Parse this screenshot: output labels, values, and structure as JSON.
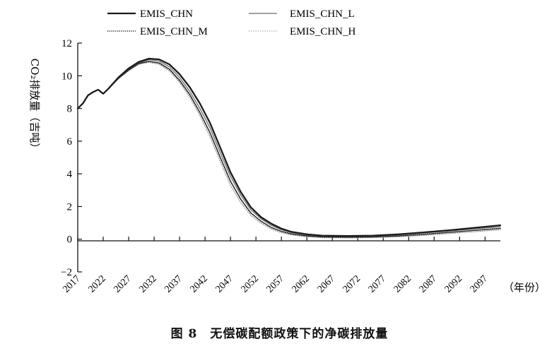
{
  "chart_data": {
    "type": "line",
    "title": "",
    "caption": "图 8　无偿碳配额政策下的净碳排放量",
    "ylabel": "CO₂排放量（吉吨）",
    "xlabel": "（年份）",
    "ylim": [
      -2,
      12
    ],
    "yticks": [
      -2,
      0,
      2,
      4,
      6,
      8,
      10,
      12
    ],
    "xlim": [
      2017,
      2100
    ],
    "xticks": [
      2017,
      2022,
      2027,
      2032,
      2037,
      2042,
      2047,
      2052,
      2057,
      2062,
      2067,
      2072,
      2077,
      2082,
      2087,
      2092,
      2097
    ],
    "grid": false,
    "legend_position": "top",
    "series": [
      {
        "name": "EMIS_CHN",
        "style": "solid-thick",
        "color": "#1a1a1a",
        "x": [
          2017,
          2018,
          2019,
          2020,
          2021,
          2022,
          2023,
          2025,
          2027,
          2029,
          2031,
          2033,
          2035,
          2037,
          2039,
          2041,
          2043,
          2045,
          2047,
          2049,
          2051,
          2053,
          2055,
          2057,
          2059,
          2062,
          2065,
          2070,
          2075,
          2080,
          2085,
          2090,
          2095,
          2100
        ],
        "values": [
          8.0,
          8.3,
          8.8,
          9.0,
          9.15,
          8.9,
          9.2,
          9.9,
          10.45,
          10.85,
          11.05,
          11.0,
          10.7,
          10.1,
          9.3,
          8.3,
          7.1,
          5.6,
          4.1,
          2.9,
          1.95,
          1.35,
          0.95,
          0.65,
          0.45,
          0.3,
          0.22,
          0.2,
          0.22,
          0.3,
          0.42,
          0.55,
          0.7,
          0.85
        ]
      },
      {
        "name": "EMIS_CHN_L",
        "style": "solid-thin",
        "color": "#6b6b6b",
        "x": [
          2017,
          2018,
          2019,
          2020,
          2021,
          2022,
          2023,
          2025,
          2027,
          2029,
          2031,
          2033,
          2035,
          2037,
          2039,
          2041,
          2043,
          2045,
          2047,
          2049,
          2051,
          2053,
          2055,
          2057,
          2059,
          2062,
          2065,
          2070,
          2075,
          2080,
          2085,
          2090,
          2095,
          2100
        ],
        "values": [
          8.0,
          8.3,
          8.8,
          9.0,
          9.15,
          8.9,
          9.2,
          9.85,
          10.4,
          10.8,
          10.98,
          10.9,
          10.55,
          9.9,
          9.05,
          8.0,
          6.8,
          5.3,
          3.85,
          2.7,
          1.8,
          1.25,
          0.85,
          0.58,
          0.4,
          0.26,
          0.2,
          0.18,
          0.2,
          0.27,
          0.38,
          0.5,
          0.63,
          0.76
        ]
      },
      {
        "name": "EMIS_CHN_M",
        "style": "dotted-dense",
        "color": "#1a1a1a",
        "x": [
          2017,
          2018,
          2019,
          2020,
          2021,
          2022,
          2023,
          2025,
          2027,
          2029,
          2031,
          2033,
          2035,
          2037,
          2039,
          2041,
          2043,
          2045,
          2047,
          2049,
          2051,
          2053,
          2055,
          2057,
          2059,
          2062,
          2065,
          2070,
          2075,
          2080,
          2085,
          2090,
          2095,
          2100
        ],
        "values": [
          8.0,
          8.3,
          8.8,
          9.0,
          9.15,
          8.9,
          9.2,
          9.85,
          10.35,
          10.75,
          10.88,
          10.78,
          10.4,
          9.72,
          8.85,
          7.75,
          6.5,
          5.0,
          3.55,
          2.45,
          1.6,
          1.1,
          0.72,
          0.48,
          0.32,
          0.2,
          0.14,
          0.12,
          0.14,
          0.2,
          0.3,
          0.42,
          0.54,
          0.66
        ]
      },
      {
        "name": "EMIS_CHN_H",
        "style": "dotted-light",
        "color": "#9a9a9a",
        "x": [
          2017,
          2018,
          2019,
          2020,
          2021,
          2022,
          2023,
          2025,
          2027,
          2029,
          2031,
          2033,
          2035,
          2037,
          2039,
          2041,
          2043,
          2045,
          2047,
          2049,
          2051,
          2053,
          2055,
          2057,
          2059,
          2062,
          2065,
          2070,
          2075,
          2080,
          2085,
          2090,
          2095,
          2100
        ],
        "values": [
          8.0,
          8.3,
          8.8,
          9.0,
          9.15,
          8.9,
          9.2,
          9.8,
          10.3,
          10.7,
          10.82,
          10.7,
          10.3,
          9.6,
          8.7,
          7.55,
          6.25,
          4.75,
          3.3,
          2.25,
          1.45,
          0.98,
          0.62,
          0.4,
          0.26,
          0.15,
          0.1,
          0.08,
          0.1,
          0.15,
          0.24,
          0.35,
          0.46,
          0.58
        ]
      }
    ]
  }
}
